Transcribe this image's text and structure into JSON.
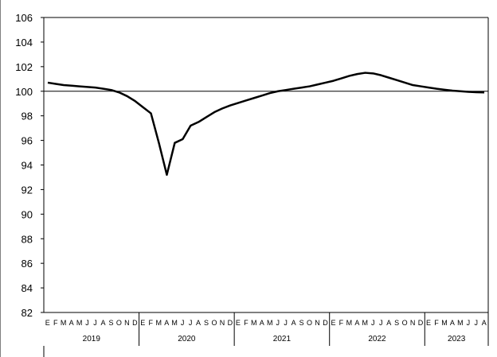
{
  "chart_data": {
    "type": "line",
    "title": "",
    "xlabel": "",
    "ylabel": "",
    "ylim": [
      82,
      106
    ],
    "yticks": [
      82,
      84,
      86,
      88,
      90,
      92,
      94,
      96,
      98,
      100,
      102,
      104,
      106
    ],
    "grid": false,
    "reference_line": 100,
    "month_labels": [
      "E",
      "F",
      "M",
      "A",
      "M",
      "J",
      "J",
      "A",
      "S",
      "O",
      "N",
      "D"
    ],
    "years": [
      {
        "label": "2019",
        "months": 12
      },
      {
        "label": "2020",
        "months": 12
      },
      {
        "label": "2021",
        "months": 12
      },
      {
        "label": "2022",
        "months": 12
      },
      {
        "label": "2023",
        "months": 8
      }
    ],
    "series": [
      {
        "color": "#000000",
        "values": [
          100.7,
          100.6,
          100.5,
          100.45,
          100.4,
          100.35,
          100.3,
          100.2,
          100.1,
          99.9,
          99.6,
          99.2,
          98.7,
          98.2,
          95.8,
          93.2,
          95.8,
          96.1,
          97.2,
          97.5,
          97.9,
          98.3,
          98.6,
          98.85,
          99.05,
          99.25,
          99.45,
          99.65,
          99.85,
          100.0,
          100.1,
          100.2,
          100.3,
          100.4,
          100.55,
          100.7,
          100.85,
          101.05,
          101.25,
          101.4,
          101.5,
          101.45,
          101.3,
          101.1,
          100.9,
          100.7,
          100.5,
          100.4,
          100.3,
          100.2,
          100.12,
          100.05,
          100.0,
          99.95,
          99.92,
          99.9
        ]
      }
    ]
  }
}
